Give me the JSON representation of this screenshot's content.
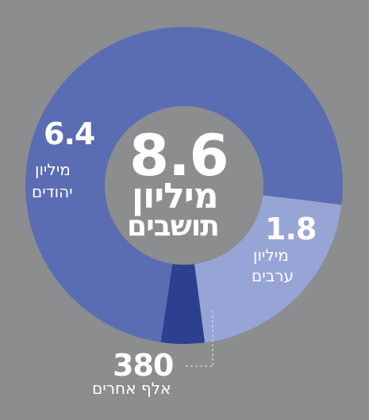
{
  "colors": {
    "background": "#8b8d8e",
    "jews": "#5a6cb2",
    "arabs": "#97a4d6",
    "others": "#2d3f8f",
    "center_circle": "#8b8d8e",
    "text": "#ffffff",
    "leader_line": "#e6e6e6"
  },
  "center": {
    "number": "8.6",
    "line1": "מיליון",
    "line2": "תושבים"
  },
  "chart_data": {
    "type": "donut",
    "title": "",
    "total": {
      "value": 8.6,
      "unit": "מיליון תושבים"
    },
    "slices": [
      {
        "key": "jews",
        "value": 6.4,
        "unit": "million",
        "number_label": "6.4",
        "text_label": [
          "מיליון",
          "יהודים"
        ]
      },
      {
        "key": "arabs",
        "value": 1.8,
        "unit": "million",
        "number_label": "1.8",
        "text_label": [
          "מיליון",
          "ערבים"
        ]
      },
      {
        "key": "others",
        "value": 0.38,
        "unit": "million",
        "number_label": "380",
        "text_label": [
          "אלף אחרים"
        ]
      }
    ]
  }
}
